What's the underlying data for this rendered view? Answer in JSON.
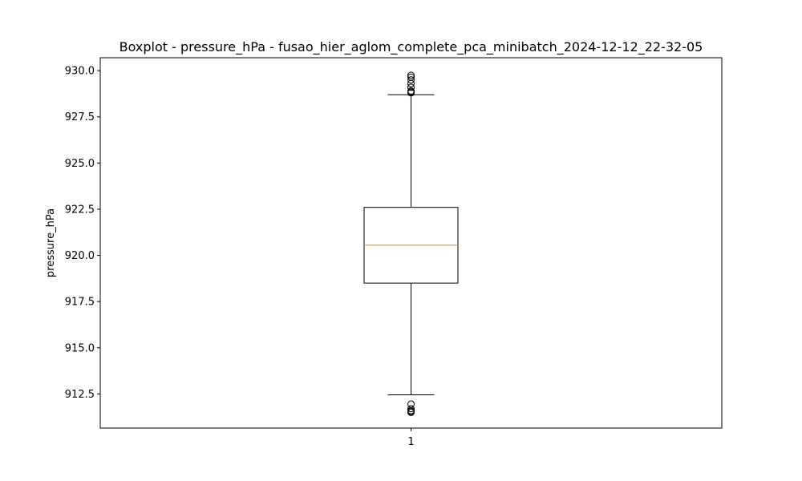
{
  "chart_data": {
    "type": "boxplot",
    "title": "Boxplot - pressure_hPa - fusao_hier_aglom_complete_pca_minibatch_2024-12-12_22-32-05",
    "xlabel": "",
    "ylabel": "pressure_hPa",
    "ylim": [
      910.65,
      930.7
    ],
    "yticks": [
      "912.5",
      "915.0",
      "917.5",
      "920.0",
      "922.5",
      "925.0",
      "927.5",
      "930.0"
    ],
    "categories": [
      "1"
    ],
    "boxes": [
      {
        "label": "1",
        "whisker_low": 912.45,
        "q1": 918.5,
        "median": 920.55,
        "q3": 922.6,
        "whisker_high": 928.7,
        "outliers": [
          911.5,
          911.55,
          911.6,
          911.7,
          911.95,
          928.8,
          928.85,
          928.9,
          929.1,
          929.3,
          929.5,
          929.65,
          929.75
        ]
      }
    ],
    "colors": {
      "box": "#000000",
      "median": "#ff7f0e",
      "outlier": "#000000"
    },
    "grid": false
  }
}
